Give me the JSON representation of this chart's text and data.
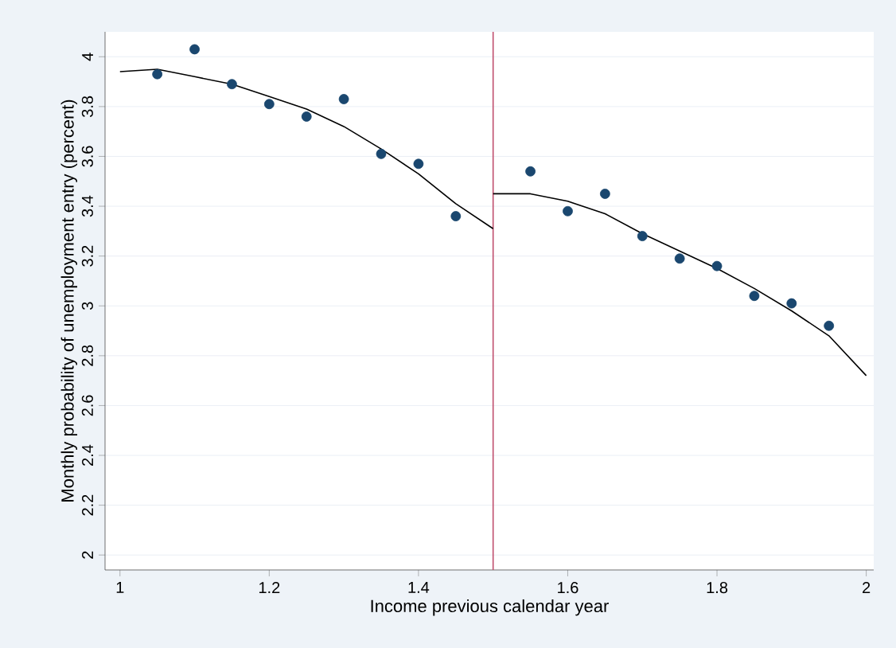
{
  "chart_data": {
    "type": "scatter",
    "xlabel": "Income previous calendar year",
    "ylabel": "Monthly probability of unemployment entry (percent)",
    "series": [
      {
        "color": "#1a476f",
        "marker": "circle",
        "x": [
          1.05,
          1.1,
          1.15,
          1.2,
          1.25,
          1.3,
          1.35,
          1.4,
          1.45,
          1.55,
          1.6,
          1.65,
          1.7,
          1.75,
          1.8,
          1.85,
          1.9,
          1.95
        ],
        "values": [
          3.93,
          4.03,
          3.89,
          3.81,
          3.76,
          3.83,
          3.61,
          3.57,
          3.36,
          3.54,
          3.38,
          3.45,
          3.28,
          3.19,
          3.16,
          3.04,
          3.01,
          2.92
        ]
      },
      {
        "type": "line",
        "color": "#000000",
        "x": [
          1.0,
          1.05,
          1.1,
          1.15,
          1.2,
          1.25,
          1.3,
          1.35,
          1.4,
          1.45,
          1.5
        ],
        "values": [
          3.94,
          3.95,
          3.92,
          3.89,
          3.84,
          3.79,
          3.72,
          3.63,
          3.53,
          3.41,
          3.31
        ]
      },
      {
        "type": "line",
        "color": "#000000",
        "x": [
          1.5,
          1.55,
          1.6,
          1.65,
          1.7,
          1.75,
          1.8,
          1.85,
          1.9,
          1.95,
          2.0
        ],
        "values": [
          3.45,
          3.45,
          3.42,
          3.37,
          3.29,
          3.22,
          3.15,
          3.07,
          2.98,
          2.88,
          2.72
        ]
      }
    ],
    "xlim": [
      0.98,
      2.01
    ],
    "ylim": [
      1.94,
      4.1
    ],
    "xticks": [
      1,
      1.2,
      1.4,
      1.6,
      1.8,
      2
    ],
    "yticks": [
      2,
      2.2,
      2.4,
      2.6,
      2.8,
      3,
      3.2,
      3.4,
      3.6,
      3.8,
      4
    ],
    "grid": "y",
    "ref_lines": [
      {
        "axis": "x",
        "value": 1.5,
        "color": "#c0506e"
      }
    ]
  }
}
